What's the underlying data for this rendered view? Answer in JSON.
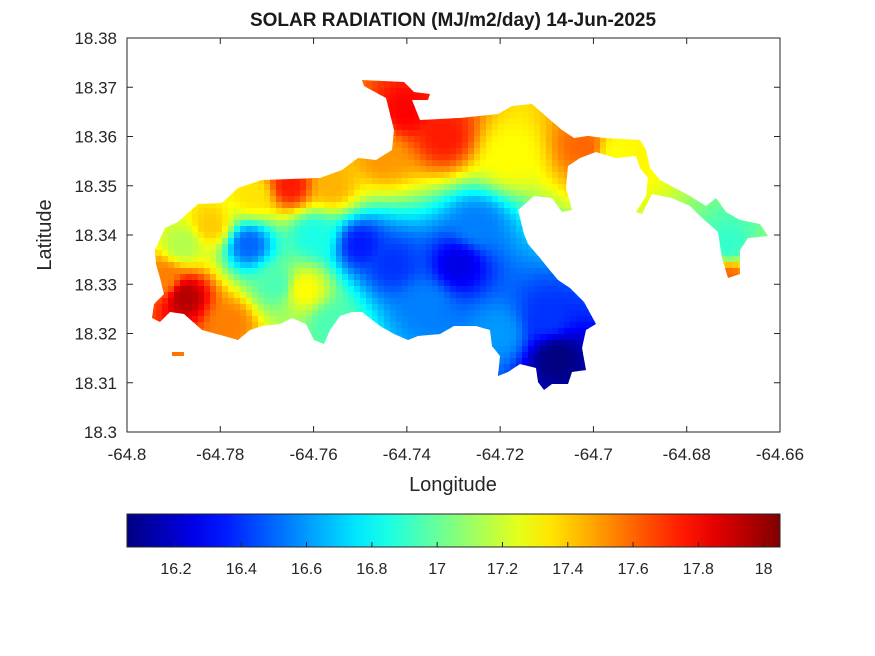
{
  "chart_data": {
    "type": "heatmap",
    "title": "SOLAR RADIATION (MJ/m2/day) 14-Jun-2025",
    "xlabel": "Longitude",
    "ylabel": "Latitude",
    "xlim": [
      -64.8,
      -64.66
    ],
    "ylim": [
      18.3,
      18.38
    ],
    "xticks": [
      -64.8,
      -64.78,
      -64.76,
      -64.74,
      -64.72,
      -64.7,
      -64.68,
      -64.66
    ],
    "yticks": [
      18.3,
      18.31,
      18.32,
      18.33,
      18.34,
      18.35,
      18.36,
      18.37,
      18.38
    ],
    "xtick_labels": [
      "-64.8",
      "-64.78",
      "-64.76",
      "-64.74",
      "-64.72",
      "-64.7",
      "-64.68",
      "-64.66"
    ],
    "ytick_labels": [
      "18.3",
      "18.31",
      "18.32",
      "18.33",
      "18.34",
      "18.35",
      "18.36",
      "18.37",
      "18.38"
    ],
    "colormap": "jet",
    "clim": [
      16.05,
      18.05
    ],
    "colorbar_ticks": [
      16.2,
      16.4,
      16.6,
      16.8,
      17,
      17.2,
      17.4,
      17.6,
      17.8,
      18
    ],
    "colorbar_tick_labels": [
      "16.2",
      "16.4",
      "16.6",
      "16.8",
      "17",
      "17.2",
      "17.4",
      "17.6",
      "17.8",
      "18"
    ],
    "colorbar_location": "bottom",
    "grid": false,
    "field": {
      "nodata_value": null,
      "regions": [
        {
          "lon": -64.7875,
          "lat": 18.3275,
          "value": 17.95
        },
        {
          "lon": -64.792,
          "lat": 18.331,
          "value": 17.55
        },
        {
          "lon": -64.778,
          "lat": 18.322,
          "value": 17.55
        },
        {
          "lon": -64.782,
          "lat": 18.342,
          "value": 17.4
        },
        {
          "lon": -64.765,
          "lat": 18.35,
          "value": 17.75
        },
        {
          "lon": -64.756,
          "lat": 18.35,
          "value": 17.45
        },
        {
          "lon": -64.773,
          "lat": 18.348,
          "value": 17.35
        },
        {
          "lon": -64.74,
          "lat": 18.365,
          "value": 17.8
        },
        {
          "lon": -64.732,
          "lat": 18.36,
          "value": 17.75
        },
        {
          "lon": -64.745,
          "lat": 18.356,
          "value": 17.5
        },
        {
          "lon": -64.718,
          "lat": 18.356,
          "value": 17.3
        },
        {
          "lon": -64.702,
          "lat": 18.358,
          "value": 17.6
        },
        {
          "lon": -64.695,
          "lat": 18.357,
          "value": 17.3
        },
        {
          "lon": -64.671,
          "lat": 18.338,
          "value": 16.9
        },
        {
          "lon": -64.671,
          "lat": 18.331,
          "value": 17.6
        },
        {
          "lon": -64.774,
          "lat": 18.338,
          "value": 16.5
        },
        {
          "lon": -64.768,
          "lat": 18.33,
          "value": 16.95
        },
        {
          "lon": -64.76,
          "lat": 18.34,
          "value": 16.85
        },
        {
          "lon": -64.75,
          "lat": 18.338,
          "value": 16.35
        },
        {
          "lon": -64.743,
          "lat": 18.334,
          "value": 16.4
        },
        {
          "lon": -64.729,
          "lat": 18.334,
          "value": 16.25
        },
        {
          "lon": -64.736,
          "lat": 18.326,
          "value": 16.55
        },
        {
          "lon": -64.725,
          "lat": 18.342,
          "value": 16.55
        },
        {
          "lon": -64.71,
          "lat": 18.323,
          "value": 16.4
        },
        {
          "lon": -64.708,
          "lat": 18.315,
          "value": 16.05
        },
        {
          "lon": -64.72,
          "lat": 18.32,
          "value": 16.6
        },
        {
          "lon": -64.756,
          "lat": 18.322,
          "value": 16.95
        },
        {
          "lon": -64.788,
          "lat": 18.338,
          "value": 17.15
        },
        {
          "lon": -64.762,
          "lat": 18.329,
          "value": 17.3
        }
      ]
    }
  }
}
